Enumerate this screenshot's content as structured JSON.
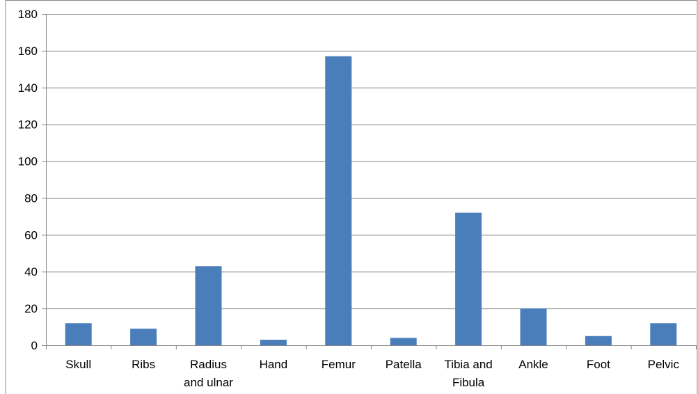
{
  "chart_data": {
    "type": "bar",
    "title": "",
    "xlabel": "",
    "ylabel": "",
    "categories": [
      [
        "Skull"
      ],
      [
        "Ribs"
      ],
      [
        "Radius",
        "and ulnar"
      ],
      [
        "Hand"
      ],
      [
        "Femur"
      ],
      [
        "Patella"
      ],
      [
        "Tibia and",
        "Fibula"
      ],
      [
        "Ankle"
      ],
      [
        "Foot"
      ],
      [
        "Pelvic"
      ]
    ],
    "values": [
      12,
      9,
      43,
      3,
      157,
      4,
      72,
      20,
      5,
      12
    ],
    "ylim": [
      0,
      180
    ],
    "yticks": [
      0,
      20,
      40,
      60,
      80,
      100,
      120,
      140,
      160,
      180
    ],
    "grid": true,
    "legend": "none",
    "bar_color": "#4a7ebb",
    "grid_color": "#868686"
  }
}
